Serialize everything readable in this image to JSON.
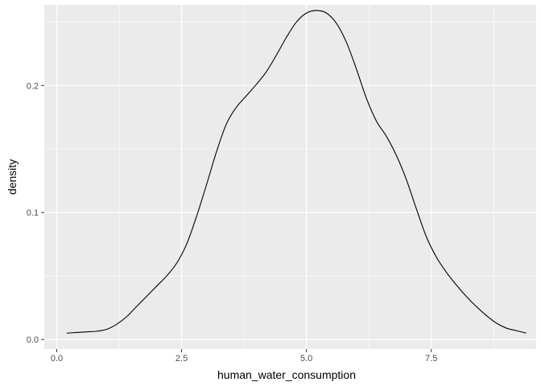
{
  "chart_data": {
    "type": "line",
    "title": "",
    "xlabel": "human_water_consumption",
    "ylabel": "density",
    "xlim": [
      -0.25,
      9.6
    ],
    "ylim": [
      -0.0075,
      0.2635
    ],
    "x_ticks": [
      0.0,
      2.5,
      5.0,
      7.5
    ],
    "x_tick_labels": [
      "0.0",
      "2.5",
      "5.0",
      "7.5"
    ],
    "y_ticks": [
      0.0,
      0.1,
      0.2
    ],
    "y_tick_labels": [
      "0.0",
      "0.1",
      "0.2"
    ],
    "grid": true,
    "legend": "none",
    "colors": {
      "panel": "#EBEBEB",
      "grid_major": "#FFFFFF",
      "line": "#000000",
      "tick_text": "#4D4D4D",
      "tick_mark": "#333333"
    },
    "series": [
      {
        "x": [
          0.2,
          0.4,
          0.6,
          0.8,
          1.0,
          1.2,
          1.4,
          1.6,
          1.8,
          2.0,
          2.2,
          2.4,
          2.6,
          2.8,
          3.0,
          3.2,
          3.4,
          3.6,
          3.8,
          4.0,
          4.2,
          4.4,
          4.6,
          4.8,
          5.0,
          5.2,
          5.4,
          5.6,
          5.8,
          6.0,
          6.2,
          6.4,
          6.6,
          6.8,
          7.0,
          7.2,
          7.4,
          7.6,
          7.8,
          8.0,
          8.2,
          8.4,
          8.6,
          8.8,
          9.0,
          9.2,
          9.4
        ],
        "y": [
          0.005,
          0.0055,
          0.006,
          0.0065,
          0.008,
          0.012,
          0.018,
          0.026,
          0.034,
          0.042,
          0.05,
          0.06,
          0.075,
          0.097,
          0.122,
          0.148,
          0.17,
          0.183,
          0.192,
          0.201,
          0.211,
          0.224,
          0.238,
          0.25,
          0.257,
          0.259,
          0.257,
          0.249,
          0.234,
          0.213,
          0.19,
          0.172,
          0.16,
          0.145,
          0.126,
          0.103,
          0.081,
          0.065,
          0.053,
          0.043,
          0.034,
          0.026,
          0.019,
          0.013,
          0.009,
          0.007,
          0.005
        ]
      }
    ]
  }
}
